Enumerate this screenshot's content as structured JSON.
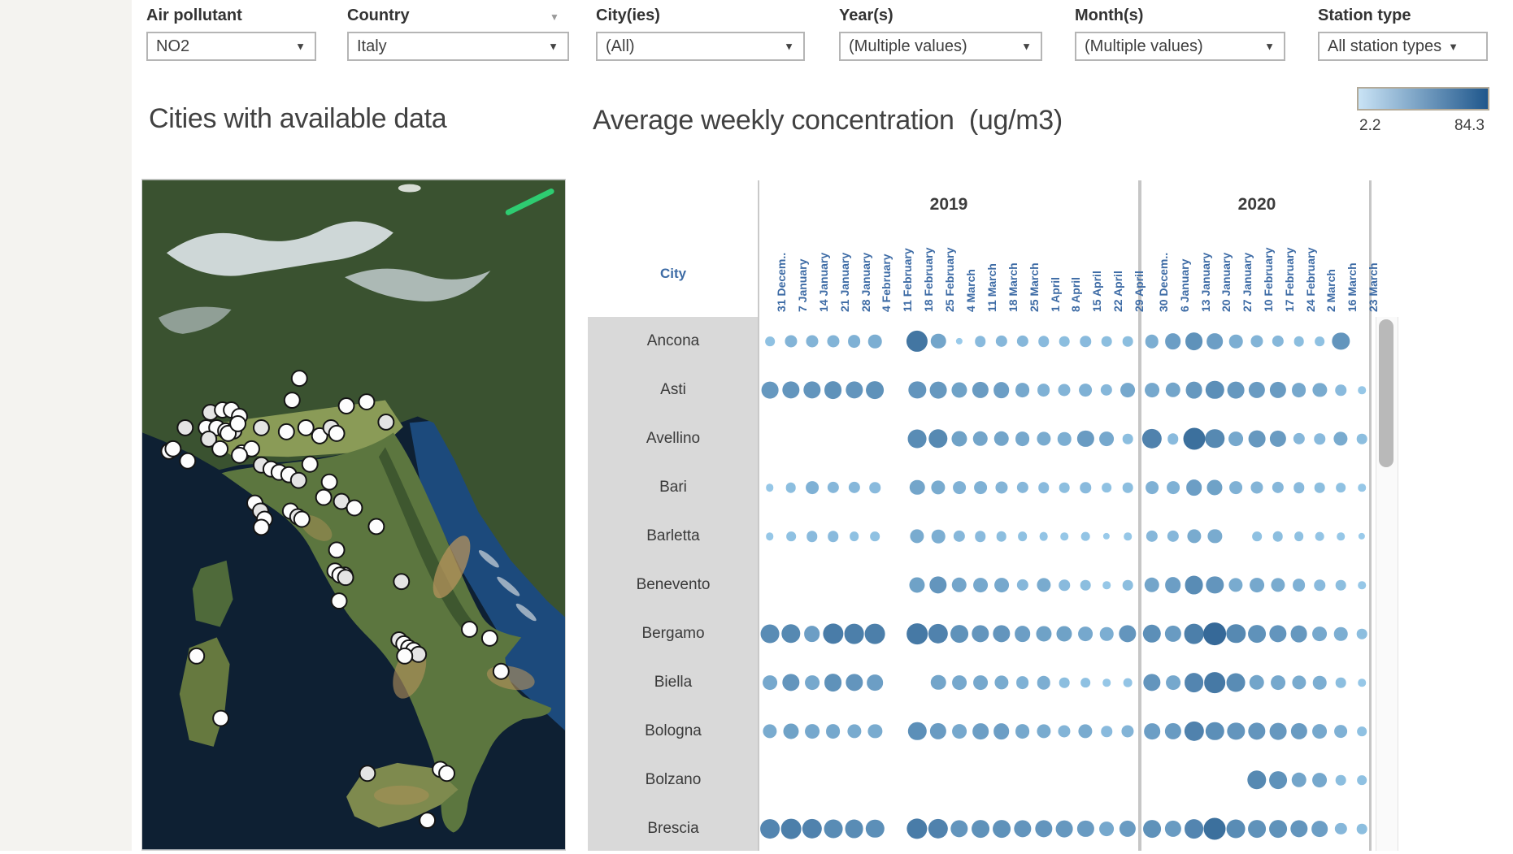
{
  "filters": {
    "air_pollutant": {
      "label": "Air pollutant",
      "value": "NO2"
    },
    "country": {
      "label": "Country",
      "value": "Italy"
    },
    "cities": {
      "label": "City(ies)",
      "value": "(All)"
    },
    "years": {
      "label": "Year(s)",
      "value": "(Multiple values)"
    },
    "months": {
      "label": "Month(s)",
      "value": "(Multiple values)"
    },
    "station_type": {
      "label": "Station type",
      "value": "All station types"
    }
  },
  "legend": {
    "min": "2.2",
    "max": "84.3",
    "min_color": "#c9e3f5",
    "max_color": "#1f578c"
  },
  "map": {
    "title": "Cities with available data",
    "markers": [
      [
        194,
        245
      ],
      [
        185,
        272
      ],
      [
        84,
        287
      ],
      [
        99,
        284
      ],
      [
        110,
        284
      ],
      [
        120,
        292
      ],
      [
        53,
        306
      ],
      [
        79,
        306
      ],
      [
        92,
        306
      ],
      [
        103,
        310
      ],
      [
        113,
        310
      ],
      [
        33,
        335
      ],
      [
        38,
        332
      ],
      [
        56,
        347
      ],
      [
        82,
        320
      ],
      [
        96,
        332
      ],
      [
        106,
        313
      ],
      [
        118,
        301
      ],
      [
        147,
        306
      ],
      [
        178,
        311
      ],
      [
        202,
        306
      ],
      [
        219,
        316
      ],
      [
        233,
        306
      ],
      [
        240,
        313
      ],
      [
        252,
        279
      ],
      [
        277,
        274
      ],
      [
        301,
        299
      ],
      [
        123,
        337
      ],
      [
        135,
        332
      ],
      [
        120,
        340
      ],
      [
        147,
        352
      ],
      [
        159,
        357
      ],
      [
        169,
        361
      ],
      [
        181,
        364
      ],
      [
        193,
        371
      ],
      [
        207,
        351
      ],
      [
        231,
        373
      ],
      [
        224,
        392
      ],
      [
        246,
        397
      ],
      [
        262,
        405
      ],
      [
        289,
        428
      ],
      [
        139,
        399
      ],
      [
        146,
        409
      ],
      [
        151,
        419
      ],
      [
        147,
        429
      ],
      [
        183,
        409
      ],
      [
        192,
        416
      ],
      [
        197,
        419
      ],
      [
        240,
        457
      ],
      [
        250,
        488
      ],
      [
        320,
        496
      ],
      [
        243,
        520
      ],
      [
        238,
        483
      ],
      [
        244,
        488
      ],
      [
        251,
        491
      ],
      [
        404,
        555
      ],
      [
        429,
        566
      ],
      [
        443,
        607
      ],
      [
        317,
        568
      ],
      [
        323,
        573
      ],
      [
        329,
        578
      ],
      [
        335,
        581
      ],
      [
        341,
        586
      ],
      [
        324,
        588
      ],
      [
        67,
        588
      ],
      [
        97,
        665
      ],
      [
        278,
        733
      ],
      [
        368,
        728
      ],
      [
        376,
        733
      ],
      [
        352,
        791
      ]
    ]
  },
  "chart_data": {
    "type": "bubble-matrix",
    "title": "Average weekly concentration  (ug/m3)",
    "row_header": "City",
    "unit": "ug/m3",
    "value_range": [
      2.2,
      84.3
    ],
    "bubble_min_color": "#9fd0ef",
    "bubble_max_color": "#1c5082",
    "year_groups": [
      {
        "year": "2019",
        "weeks": [
          "31 Decem..",
          "7 January",
          "14 January",
          "21 January",
          "28 January",
          "4 February",
          "11 February",
          "18 February",
          "25 February",
          "4 March",
          "11 March",
          "18 March",
          "25 March",
          "1 April",
          "8 April",
          "15 April",
          "22 April",
          "29 April"
        ]
      },
      {
        "year": "2020",
        "weeks": [
          "30 Decem..",
          "6 January",
          "13 January",
          "20 January",
          "27 January",
          "10 February",
          "17 February",
          "24 February",
          "2 March",
          "16 March",
          "23 March"
        ]
      }
    ],
    "rows": [
      {
        "city": "Ancona",
        "values_2019": [
          12,
          20,
          20,
          20,
          22,
          24,
          null,
          60,
          30,
          6,
          16,
          18,
          18,
          16,
          14,
          16,
          14,
          14
        ],
        "values_2020": [
          24,
          34,
          42,
          34,
          24,
          20,
          18,
          14,
          12,
          40,
          null
        ]
      },
      {
        "city": "Asti",
        "values_2019": [
          38,
          40,
          40,
          42,
          40,
          42,
          null,
          40,
          38,
          32,
          36,
          34,
          28,
          22,
          20,
          22,
          18,
          28
        ],
        "values_2020": [
          28,
          30,
          38,
          44,
          38,
          36,
          36,
          28,
          26,
          16,
          8
        ]
      },
      {
        "city": "Avellino",
        "values_2019": [
          null,
          null,
          null,
          null,
          null,
          null,
          null,
          46,
          48,
          32,
          30,
          30,
          28,
          26,
          24,
          36,
          28,
          14
        ],
        "values_2020": [
          52,
          16,
          64,
          48,
          28,
          38,
          36,
          18,
          16,
          26,
          14
        ]
      },
      {
        "city": "Bari",
        "values_2019": [
          8,
          14,
          22,
          18,
          18,
          16,
          null,
          30,
          26,
          22,
          22,
          20,
          18,
          16,
          14,
          16,
          12,
          14
        ],
        "values_2020": [
          22,
          22,
          34,
          32,
          22,
          20,
          18,
          16,
          14,
          12,
          8
        ]
      },
      {
        "city": "Barletta",
        "values_2019": [
          8,
          12,
          16,
          16,
          12,
          12,
          null,
          26,
          24,
          18,
          16,
          14,
          12,
          10,
          8,
          10,
          6,
          8
        ],
        "values_2020": [
          18,
          18,
          26,
          26,
          null,
          12,
          14,
          12,
          10,
          8,
          6
        ]
      },
      {
        "city": "Benevento",
        "values_2019": [
          null,
          null,
          null,
          null,
          null,
          null,
          null,
          32,
          40,
          30,
          28,
          28,
          18,
          26,
          16,
          14,
          8,
          14
        ],
        "values_2020": [
          30,
          34,
          46,
          40,
          26,
          28,
          26,
          22,
          16,
          14,
          8
        ]
      },
      {
        "city": "Bergamo",
        "values_2019": [
          46,
          48,
          34,
          56,
          54,
          54,
          null,
          58,
          52,
          42,
          40,
          40,
          34,
          32,
          32,
          28,
          24,
          40
        ],
        "values_2020": [
          44,
          36,
          54,
          68,
          48,
          42,
          40,
          38,
          28,
          24,
          14
        ]
      },
      {
        "city": "Biella",
        "values_2019": [
          28,
          40,
          28,
          42,
          40,
          34,
          null,
          null,
          30,
          28,
          28,
          26,
          22,
          24,
          14,
          12,
          8,
          10
        ],
        "values_2020": [
          40,
          28,
          50,
          58,
          46,
          30,
          28,
          26,
          24,
          14,
          8
        ]
      },
      {
        "city": "Bologna",
        "values_2019": [
          26,
          32,
          28,
          28,
          26,
          26,
          null,
          44,
          36,
          28,
          34,
          34,
          28,
          26,
          20,
          26,
          16,
          20
        ],
        "values_2020": [
          34,
          36,
          52,
          44,
          40,
          40,
          38,
          36,
          28,
          22,
          12
        ]
      },
      {
        "city": "Bolzano",
        "values_2019": [
          null,
          null,
          null,
          null,
          null,
          null,
          null,
          null,
          null,
          null,
          null,
          null,
          null,
          null,
          null,
          null,
          null,
          null
        ],
        "values_2020": [
          null,
          null,
          null,
          null,
          null,
          48,
          42,
          30,
          28,
          14,
          12
        ]
      },
      {
        "city": "Brescia",
        "values_2019": [
          50,
          54,
          52,
          46,
          46,
          44,
          null,
          56,
          52,
          40,
          42,
          42,
          40,
          40,
          38,
          36,
          28,
          36
        ],
        "values_2020": [
          42,
          36,
          50,
          64,
          46,
          42,
          42,
          40,
          34,
          18,
          14
        ]
      }
    ]
  }
}
